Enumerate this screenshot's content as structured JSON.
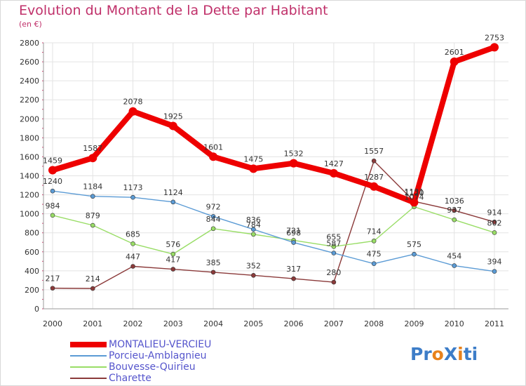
{
  "header": {
    "title": "Evolution du Montant de la Dette par Habitant",
    "subtitle": "(en €)"
  },
  "logo": {
    "text": "ProXiti",
    "colors": [
      "#3d7dc8",
      "#3d7dc8",
      "#e8821c",
      "#3d7dc8",
      "#e8821c",
      "#3d7dc8",
      "#3d7dc8"
    ]
  },
  "colors": {
    "title": "#c0306a",
    "legend_text": "#5555cc",
    "grid": "#e3e3e3",
    "axis_text": "#333333"
  },
  "chart_data": {
    "type": "line",
    "title": "Evolution du Montant de la Dette par Habitant",
    "subtitle": "(en €)",
    "xlabel": "",
    "ylabel": "",
    "x": [
      "2000",
      "2001",
      "2002",
      "2003",
      "2004",
      "2005",
      "2006",
      "2007",
      "2008",
      "2009",
      "2010",
      "2011"
    ],
    "ylim": [
      0,
      2800
    ],
    "yticks": [
      0,
      200,
      400,
      600,
      800,
      1000,
      1200,
      1400,
      1600,
      1800,
      2000,
      2200,
      2400,
      2600,
      2800
    ],
    "grid": true,
    "legend_position": "bottom-left",
    "series": [
      {
        "name": "MONTALIEU-VERCIEU",
        "color": "#ee0000",
        "values": [
          1459,
          1587,
          2078,
          1925,
          1601,
          1475,
          1532,
          1427,
          1287,
          1120,
          2601,
          2753
        ],
        "labels": [
          "1459",
          "1587",
          "2078",
          "1925",
          "1601",
          "1475",
          "1532",
          "1427",
          "1287",
          "1120",
          "2601",
          "2753"
        ]
      },
      {
        "name": "Porcieu-Amblagnieu",
        "color": "#5b9bd5",
        "values": [
          1240,
          1184,
          1173,
          1124,
          972,
          836,
          698,
          587,
          475,
          575,
          454,
          394
        ],
        "labels": [
          "1240",
          "1184",
          "1173",
          "1124",
          "972",
          "836",
          "698",
          "587",
          "475",
          "575",
          "454",
          "394"
        ]
      },
      {
        "name": "Bouvesse-Quirieu",
        "color": "#99dd66",
        "values": [
          984,
          879,
          685,
          576,
          844,
          784,
          721,
          655,
          714,
          1074,
          937,
          802
        ],
        "labels": [
          "984",
          "879",
          "685",
          "576",
          "844",
          "784",
          "721",
          "655",
          "714",
          "1074",
          "937",
          "802"
        ]
      },
      {
        "name": "Charette",
        "color": "#8b3a3a",
        "values": [
          217,
          214,
          447,
          417,
          385,
          352,
          317,
          280,
          1557,
          1131,
          1036,
          914
        ],
        "labels": [
          "217",
          "214",
          "447",
          "417",
          "385",
          "352",
          "317",
          "280",
          "1557",
          "1131",
          "1036",
          "914"
        ]
      }
    ]
  }
}
